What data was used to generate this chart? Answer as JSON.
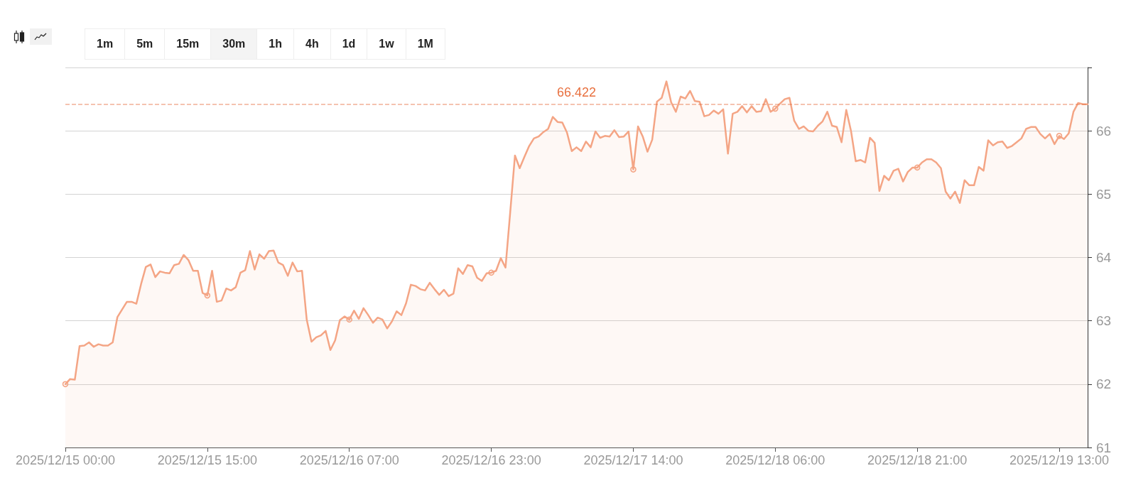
{
  "chart_data": {
    "type": "area",
    "grid": "y",
    "annotations": [
      "1m",
      "5m",
      "15m",
      "30m",
      "1h",
      "4h",
      "1d",
      "1w",
      "1M"
    ],
    "ylim": [
      61,
      67
    ],
    "yticks": [
      61,
      62,
      63,
      64,
      65,
      66,
      {
        "value": 67,
        "label": null
      }
    ],
    "ref_lines": [
      {
        "axis": "y",
        "value": 66.422,
        "label": "66.422",
        "color": "#e8703f",
        "line_style": "dashed"
      }
    ],
    "categories": [
      "2025/12/15 00:00",
      null,
      null,
      null,
      null,
      null,
      null,
      null,
      null,
      null,
      null,
      null,
      null,
      null,
      null,
      null,
      null,
      null,
      null,
      null,
      null,
      null,
      null,
      null,
      null,
      null,
      null,
      null,
      null,
      null,
      "2025/12/15 15:00",
      null,
      null,
      null,
      null,
      null,
      null,
      null,
      null,
      null,
      null,
      null,
      null,
      null,
      null,
      null,
      null,
      null,
      null,
      null,
      null,
      null,
      null,
      null,
      null,
      null,
      null,
      null,
      null,
      null,
      "2025/12/16 07:00",
      null,
      null,
      null,
      null,
      null,
      null,
      null,
      null,
      null,
      null,
      null,
      null,
      null,
      null,
      null,
      null,
      null,
      null,
      null,
      null,
      null,
      null,
      null,
      null,
      null,
      null,
      null,
      null,
      null,
      "2025/12/16 23:00",
      null,
      null,
      null,
      null,
      null,
      null,
      null,
      null,
      null,
      null,
      null,
      null,
      null,
      null,
      null,
      null,
      null,
      null,
      null,
      null,
      null,
      null,
      null,
      null,
      null,
      null,
      null,
      null,
      null,
      "2025/12/17 14:00",
      null,
      null,
      null,
      null,
      null,
      null,
      null,
      null,
      null,
      null,
      null,
      null,
      null,
      null,
      null,
      null,
      null,
      null,
      null,
      null,
      null,
      null,
      null,
      null,
      null,
      null,
      null,
      null,
      null,
      "2025/12/18 06:00",
      null,
      null,
      null,
      null,
      null,
      null,
      null,
      null,
      null,
      null,
      null,
      null,
      null,
      null,
      null,
      null,
      null,
      null,
      null,
      null,
      null,
      null,
      null,
      null,
      null,
      null,
      null,
      null,
      null,
      "2025/12/18 21:00",
      null,
      null,
      null,
      null,
      null,
      null,
      null,
      null,
      null,
      null,
      null,
      null,
      null,
      null,
      null,
      null,
      null,
      null,
      null,
      null,
      null,
      null,
      null,
      null,
      null,
      null,
      null,
      null,
      null,
      "2025/12/19 13:00",
      null,
      null,
      null,
      null,
      null,
      null
    ],
    "series": [
      {
        "color": "#f4a585",
        "values": [
          62.0,
          62.08,
          62.07,
          62.6,
          62.61,
          62.66,
          62.59,
          62.63,
          62.61,
          62.61,
          62.66,
          63.06,
          63.18,
          63.3,
          63.3,
          63.27,
          63.58,
          63.85,
          63.89,
          63.69,
          63.78,
          63.76,
          63.75,
          63.88,
          63.9,
          64.04,
          63.96,
          63.79,
          63.79,
          63.44,
          63.4,
          63.79,
          63.3,
          63.32,
          63.51,
          63.48,
          63.53,
          63.76,
          63.8,
          64.1,
          63.81,
          64.05,
          63.98,
          64.1,
          64.11,
          63.92,
          63.88,
          63.71,
          63.92,
          63.78,
          63.79,
          63.02,
          62.67,
          62.74,
          62.77,
          62.84,
          62.54,
          62.69,
          63.01,
          63.07,
          63.02,
          63.16,
          63.03,
          63.2,
          63.09,
          62.97,
          63.05,
          63.02,
          62.88,
          62.99,
          63.15,
          63.09,
          63.28,
          63.57,
          63.55,
          63.5,
          63.48,
          63.6,
          63.5,
          63.41,
          63.49,
          63.39,
          63.43,
          63.83,
          63.74,
          63.88,
          63.86,
          63.68,
          63.63,
          63.75,
          63.76,
          63.79,
          63.99,
          63.84,
          64.72,
          65.61,
          65.41,
          65.59,
          65.76,
          65.88,
          65.91,
          65.98,
          66.03,
          66.22,
          66.14,
          66.13,
          65.97,
          65.68,
          65.74,
          65.68,
          65.83,
          65.74,
          65.99,
          65.89,
          65.92,
          65.91,
          66.01,
          65.9,
          65.91,
          65.99,
          65.39,
          66.07,
          65.91,
          65.67,
          65.86,
          66.46,
          66.52,
          66.78,
          66.45,
          66.3,
          66.54,
          66.51,
          66.63,
          66.47,
          66.46,
          66.23,
          66.25,
          66.32,
          66.27,
          66.34,
          65.64,
          66.27,
          66.3,
          66.39,
          66.29,
          66.39,
          66.3,
          66.31,
          66.5,
          66.3,
          66.35,
          66.43,
          66.5,
          66.52,
          66.16,
          66.03,
          66.07,
          66.0,
          65.99,
          66.08,
          66.15,
          66.3,
          66.08,
          66.06,
          65.82,
          66.33,
          66.0,
          65.52,
          65.54,
          65.5,
          65.89,
          65.81,
          65.05,
          65.29,
          65.22,
          65.37,
          65.4,
          65.2,
          65.35,
          65.42,
          65.42,
          65.5,
          65.55,
          65.55,
          65.5,
          65.41,
          65.04,
          64.93,
          65.04,
          64.86,
          65.22,
          65.14,
          65.14,
          65.43,
          65.37,
          65.85,
          65.77,
          65.82,
          65.83,
          65.73,
          65.76,
          65.82,
          65.88,
          66.03,
          66.06,
          66.06,
          65.95,
          65.88,
          65.95,
          65.79,
          65.92,
          65.87,
          65.96,
          66.3,
          66.44,
          66.42,
          66.42
        ]
      },
      {
        "type": "scatter",
        "color": "#f4a585",
        "marker": "circle",
        "x": [
          "2025/12/15 00:00",
          "2025/12/15 15:00",
          "2025/12/16 07:00",
          "2025/12/16 23:00",
          "2025/12/17 14:00",
          "2025/12/18 06:00",
          "2025/12/18 21:00",
          "2025/12/19 13:00"
        ],
        "values": [
          62.0,
          63.4,
          63.02,
          63.76,
          65.39,
          66.35,
          65.42,
          65.92
        ]
      }
    ]
  }
}
